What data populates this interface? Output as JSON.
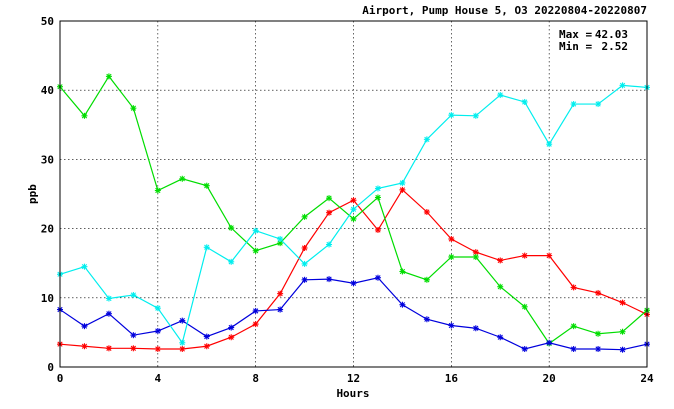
{
  "chart_data": {
    "type": "line",
    "title": "Airport, Pump House 5, O3 20220804-20220807",
    "xlabel": "Hours",
    "ylabel": "ppb",
    "xlim": [
      0,
      24
    ],
    "ylim": [
      0,
      50
    ],
    "x_ticks": [
      0,
      4,
      8,
      12,
      16,
      20,
      24
    ],
    "y_ticks": [
      0,
      10,
      20,
      30,
      40,
      50
    ],
    "grid": true,
    "stats": {
      "max_label": "Max =",
      "max_value": "42.03",
      "min_label": "Min =",
      "min_value": "2.52"
    },
    "x": [
      0,
      1,
      2,
      3,
      4,
      5,
      6,
      7,
      8,
      9,
      10,
      11,
      12,
      13,
      14,
      15,
      16,
      17,
      18,
      19,
      20,
      21,
      22,
      23,
      24
    ],
    "series": [
      {
        "color": "#ff0000",
        "values": [
          3.3,
          3.0,
          2.7,
          2.7,
          2.6,
          2.6,
          3.0,
          4.3,
          6.2,
          10.6,
          17.2,
          22.3,
          24.1,
          19.8,
          25.6,
          22.4,
          18.5,
          16.6,
          15.4,
          16.1,
          16.1,
          11.5,
          10.7,
          9.3,
          7.6
        ]
      },
      {
        "color": "#00dd00",
        "values": [
          40.5,
          36.3,
          42.0,
          37.4,
          25.5,
          27.2,
          26.2,
          20.1,
          16.8,
          17.9,
          21.7,
          24.4,
          21.4,
          24.5,
          13.8,
          12.6,
          15.9,
          15.9,
          11.6,
          8.7,
          3.4,
          5.9,
          4.8,
          5.1,
          8.2
        ]
      },
      {
        "color": "#0000dd",
        "values": [
          8.3,
          5.9,
          7.7,
          4.6,
          5.2,
          6.7,
          4.4,
          5.7,
          8.1,
          8.3,
          12.6,
          12.7,
          12.1,
          12.9,
          9.0,
          6.9,
          6.0,
          5.6,
          4.3,
          2.6,
          3.5,
          2.6,
          2.6,
          2.5,
          3.3
        ]
      },
      {
        "color": "#00eeee",
        "values": [
          13.4,
          14.5,
          9.9,
          10.4,
          8.5,
          3.5,
          17.3,
          15.2,
          19.7,
          18.5,
          14.9,
          17.7,
          22.8,
          25.8,
          26.6,
          32.9,
          36.4,
          36.3,
          39.3,
          38.3,
          32.2,
          38.0,
          38.0,
          40.7,
          40.4
        ]
      }
    ]
  }
}
